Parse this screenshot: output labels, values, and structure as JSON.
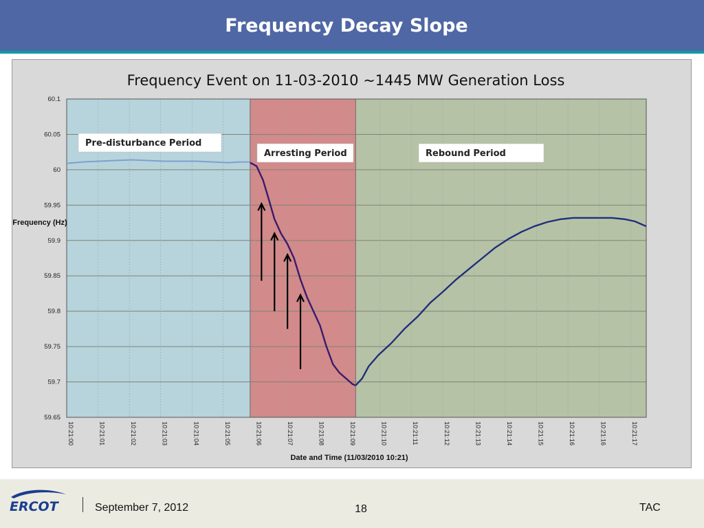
{
  "slide": {
    "title": "Frequency Decay Slope",
    "footer_date": "September 7, 2012",
    "page_number": "18",
    "footer_org": "TAC",
    "logo_text": "ERCOT"
  },
  "colors": {
    "header_bg": "#4f67a4",
    "header_rule": "#0e9aa7",
    "pre_region": "#b7d3dc",
    "arrest_region": "#d28a8a",
    "rebound_region": "#b6c2a6",
    "pre_line": "#7f9fcf",
    "main_line": "#3a1a6e",
    "rebound_line": "#1f2f7a"
  },
  "chart_data": {
    "type": "line",
    "title": "Frequency Event on 11-03-2010 ~1445 MW Generation Loss",
    "xlabel": "Date and Time (11/03/2010 10:21)",
    "ylabel": "Frequency (Hz)",
    "ylim": [
      59.65,
      60.1
    ],
    "yticks": [
      "60.1",
      "60.05",
      "60",
      "59.95",
      "59.9",
      "59.85",
      "59.8",
      "59.75",
      "59.7",
      "59.65"
    ],
    "xlim": [
      0,
      17.85
    ],
    "xticks": [
      "10:21:00",
      "10:21:01",
      "10:21:02",
      "10:21:03",
      "10:21:04",
      "10:21:05",
      "10:21:06",
      "10:21:07",
      "10:21:08",
      "10:21:09",
      "10:21:10",
      "10:21:11",
      "10:21:12",
      "10:21:13",
      "10:21:14",
      "10:21:15",
      "10:21:16",
      "10:21:16",
      "10:21:17"
    ],
    "grid": true,
    "regions": [
      {
        "label": "Pre-disturbance Period",
        "x0": 0,
        "x1": 5.65
      },
      {
        "label": "Arresting Period",
        "x0": 5.65,
        "x1": 8.9
      },
      {
        "label": "Rebound Period",
        "x0": 8.9,
        "x1": 17.85
      }
    ],
    "series": [
      {
        "segment": "pre-disturbance",
        "x": [
          0,
          0.5,
          1,
          1.5,
          2,
          2.5,
          3,
          3.5,
          4,
          4.5,
          5,
          5.3,
          5.65
        ],
        "y": [
          60.009,
          60.011,
          60.012,
          60.013,
          60.014,
          60.013,
          60.012,
          60.012,
          60.012,
          60.011,
          60.01,
          60.011,
          60.011
        ]
      },
      {
        "segment": "arresting",
        "x": [
          5.65,
          5.85,
          6.05,
          6.2,
          6.4,
          6.6,
          6.8,
          7.0,
          7.2,
          7.4,
          7.6,
          7.8,
          8.0,
          8.2,
          8.4,
          8.6,
          8.8,
          8.9
        ],
        "y": [
          60.01,
          60.005,
          59.985,
          59.962,
          59.93,
          59.91,
          59.895,
          59.875,
          59.845,
          59.82,
          59.8,
          59.78,
          59.75,
          59.725,
          59.713,
          59.705,
          59.697,
          59.695
        ]
      },
      {
        "segment": "rebound",
        "x": [
          8.9,
          9.1,
          9.3,
          9.6,
          10.0,
          10.4,
          10.8,
          11.2,
          11.6,
          12.0,
          12.4,
          12.8,
          13.2,
          13.6,
          14.0,
          14.4,
          14.8,
          15.2,
          15.6,
          16.0,
          16.4,
          16.8,
          17.2,
          17.5,
          17.85
        ],
        "y": [
          59.695,
          59.705,
          59.722,
          59.738,
          59.755,
          59.775,
          59.792,
          59.812,
          59.828,
          59.845,
          59.86,
          59.875,
          59.89,
          59.902,
          59.912,
          59.92,
          59.926,
          59.93,
          59.932,
          59.932,
          59.932,
          59.932,
          59.93,
          59.927,
          59.92
        ]
      }
    ],
    "arrows": [
      {
        "x": 6.0,
        "y_from": 59.843,
        "y_to": 59.952
      },
      {
        "x": 6.4,
        "y_from": 59.8,
        "y_to": 59.91
      },
      {
        "x": 6.8,
        "y_from": 59.775,
        "y_to": 59.88
      },
      {
        "x": 7.2,
        "y_from": 59.718,
        "y_to": 59.823
      }
    ]
  }
}
